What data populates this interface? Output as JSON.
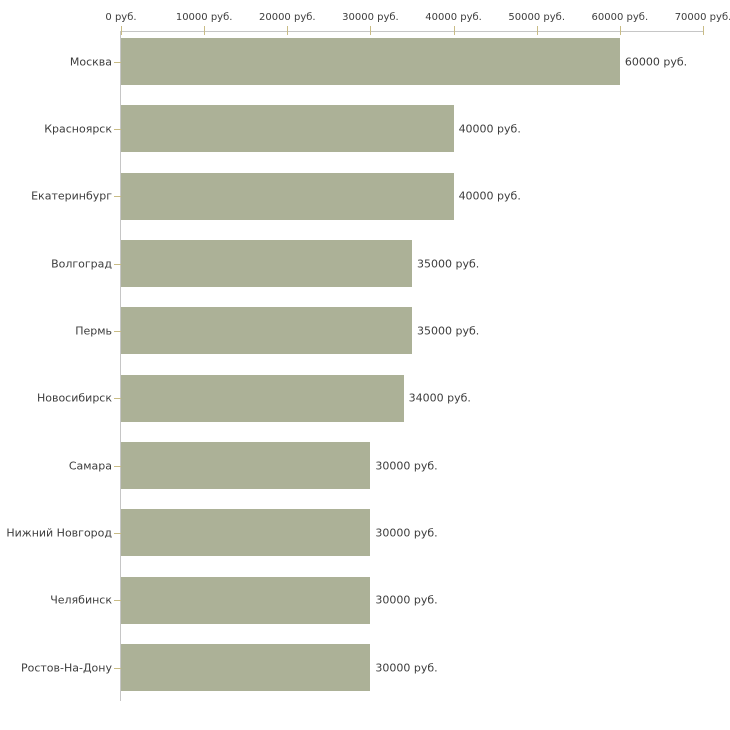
{
  "chart_data": {
    "type": "bar",
    "orientation": "horizontal",
    "title": "",
    "xlabel": "",
    "ylabel": "",
    "unit": "руб.",
    "xlim": [
      0,
      70000
    ],
    "x_tick_values": [
      0,
      10000,
      20000,
      30000,
      40000,
      50000,
      60000,
      70000
    ],
    "x_tick_labels": [
      "0 руб.",
      "10000 руб.",
      "20000 руб.",
      "30000 руб.",
      "40000 руб.",
      "50000 руб.",
      "60000 руб.",
      "70000 руб."
    ],
    "categories": [
      "Москва",
      "Красноярск",
      "Екатеринбург",
      "Волгоград",
      "Пермь",
      "Новосибирск",
      "Самара",
      "Нижний Новгород",
      "Челябинск",
      "Ростов-На-Дону"
    ],
    "values": [
      60000,
      40000,
      40000,
      35000,
      35000,
      34000,
      30000,
      30000,
      30000,
      30000
    ],
    "value_labels": [
      "60000 руб.",
      "40000 руб.",
      "40000 руб.",
      "35000 руб.",
      "35000 руб.",
      "34000 руб.",
      "30000 руб.",
      "30000 руб.",
      "30000 руб.",
      "30000 руб."
    ],
    "grid": false,
    "legend": false,
    "colors": {
      "bar": "#acb197",
      "axis_line": "#c6c6c6",
      "tick": "#c9bc85",
      "text": "#3d3d3d",
      "background": "#ffffff"
    }
  }
}
